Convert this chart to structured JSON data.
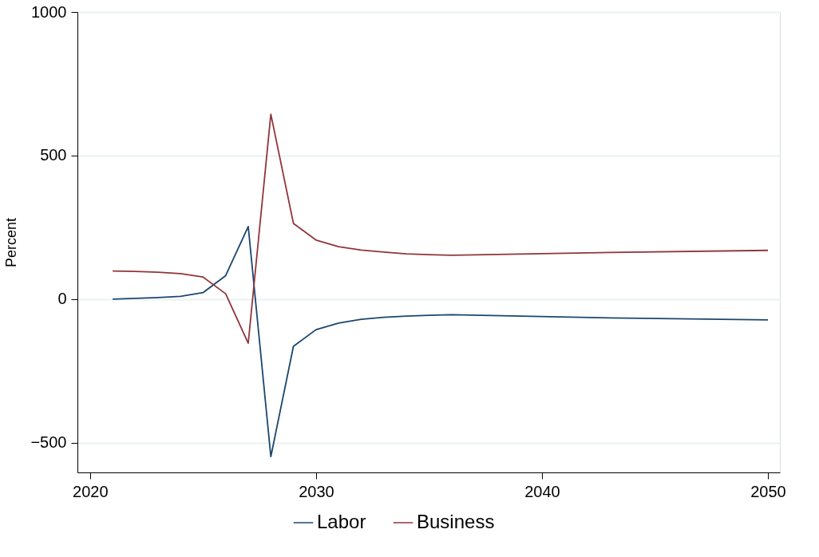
{
  "chart_data": {
    "type": "line",
    "ylabel": "Percent",
    "x": [
      2021,
      2022,
      2023,
      2024,
      2025,
      2026,
      2027,
      2028,
      2029,
      2030,
      2031,
      2032,
      2033,
      2034,
      2035,
      2036,
      2043,
      2050
    ],
    "series": [
      {
        "name": "Labor",
        "color": "#1a476f",
        "values": [
          0,
          3,
          6,
          10,
          23,
          82,
          253,
          -548,
          -164,
          -106,
          -83,
          -70,
          -63,
          -59,
          -56,
          -54,
          -65,
          -72
        ]
      },
      {
        "name": "Business",
        "color": "#90353b",
        "values": [
          98,
          97,
          94,
          89,
          77,
          19,
          -153,
          644,
          264,
          206,
          183,
          171,
          164,
          158,
          155,
          153,
          163,
          170
        ]
      }
    ],
    "xlim": [
      2019.44,
      2050.53
    ],
    "xticks": [
      2020,
      2030,
      2040,
      2050
    ],
    "ylim": [
      -603,
      1000
    ],
    "yticks": [
      {
        "value": -500,
        "label": "−500"
      },
      0,
      500,
      1000
    ],
    "grid": "y",
    "legend": "bottom",
    "marker": "none",
    "line_style": "solid"
  }
}
